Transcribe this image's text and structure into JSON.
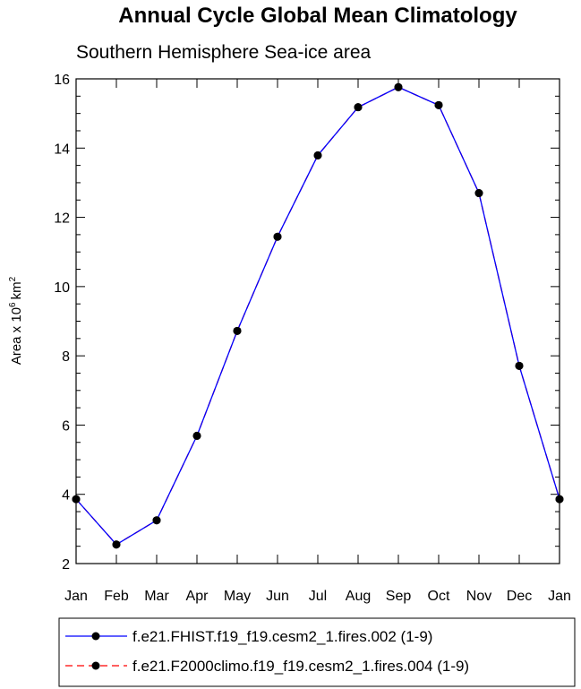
{
  "chart_data": {
    "type": "line",
    "title": "Annual Cycle Global Mean Climatology",
    "subtitle": "Southern Hemisphere Sea-ice area",
    "ylabel": "Area x 10",
    "ylabel_exponent": "6",
    "ylabel_unit": "km",
    "ylabel_unit_exponent": "2",
    "categories": [
      "Jan",
      "Feb",
      "Mar",
      "Apr",
      "May",
      "Jun",
      "Jul",
      "Aug",
      "Sep",
      "Oct",
      "Nov",
      "Dec",
      "Jan"
    ],
    "ylim": [
      2,
      16
    ],
    "yticks": [
      2,
      4,
      6,
      8,
      10,
      12,
      14,
      16
    ],
    "ytick_labels": [
      "2",
      "4",
      "6",
      "8",
      "10",
      "12",
      "14",
      "16"
    ],
    "grid": false,
    "legend_position": "bottom",
    "series": [
      {
        "name": "f.e21.FHIST.f19_f19.cesm2_1.fires.002 (1-9)",
        "color": "#0000ff",
        "line_style": "solid",
        "marker": "filled-circle",
        "values": [
          3.86,
          2.55,
          3.25,
          5.69,
          8.72,
          11.44,
          13.79,
          15.18,
          15.76,
          15.24,
          12.7,
          7.71,
          3.86
        ]
      },
      {
        "name": "f.e21.F2000climo.f19_f19.cesm2_1.fires.004 (1-9)",
        "color": "#ff0000",
        "line_style": "dashed",
        "marker": "filled-circle",
        "values": [
          3.86,
          2.55,
          3.25,
          5.69,
          8.72,
          11.44,
          13.79,
          15.18,
          15.76,
          15.24,
          12.7,
          7.71,
          3.86
        ]
      }
    ]
  }
}
